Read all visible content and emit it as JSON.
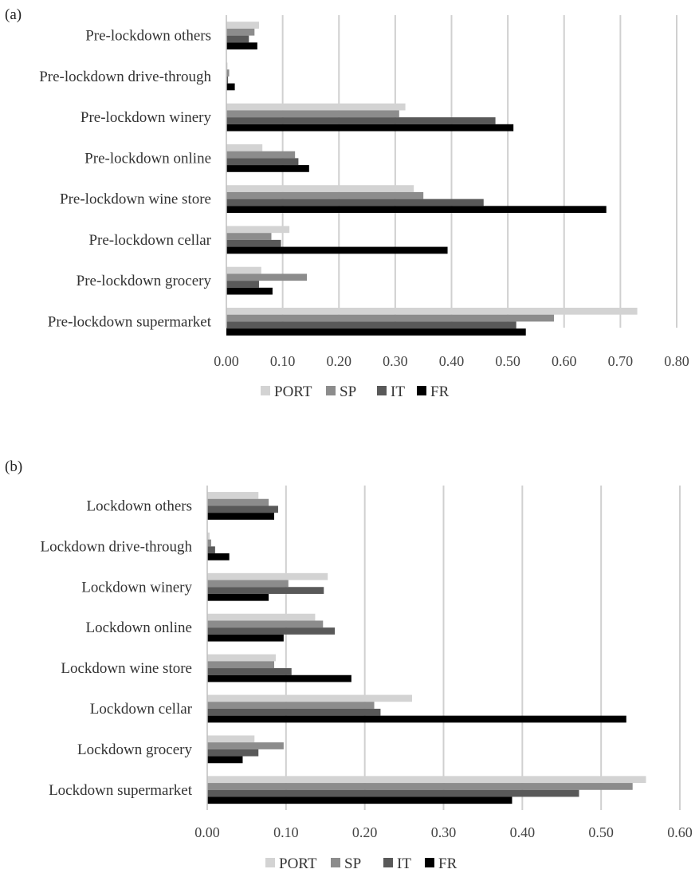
{
  "chart_data": [
    {
      "type": "bar",
      "orientation": "horizontal",
      "panel_label": "(a)",
      "categories": [
        "Pre-lockdown others",
        "Pre-lockdown drive-through",
        "Pre-lockdown winery",
        "Pre-lockdown online",
        "Pre-lockdown wine store",
        "Pre-lockdown cellar",
        "Pre-lockdown grocery",
        "Pre-lockdown supermarket"
      ],
      "series": [
        {
          "name": "PORT",
          "color": "#d3d3d3",
          "values": [
            0.058,
            0.002,
            0.318,
            0.064,
            0.333,
            0.112,
            0.062,
            0.73
          ]
        },
        {
          "name": "SP",
          "color": "#8c8c8c",
          "values": [
            0.05,
            0.005,
            0.307,
            0.122,
            0.35,
            0.08,
            0.143,
            0.582
          ]
        },
        {
          "name": "IT",
          "color": "#595959",
          "values": [
            0.04,
            0.003,
            0.478,
            0.128,
            0.457,
            0.097,
            0.058,
            0.515
          ]
        },
        {
          "name": "FR",
          "color": "#000000",
          "values": [
            0.055,
            0.015,
            0.51,
            0.147,
            0.675,
            0.393,
            0.082,
            0.532
          ]
        }
      ],
      "xlim": [
        0,
        0.8
      ],
      "xticks": [
        "0.00",
        "0.10",
        "0.20",
        "0.30",
        "0.40",
        "0.50",
        "0.60",
        "0.70",
        "0.80"
      ],
      "grid": "vertical",
      "legend_position": "bottom"
    },
    {
      "type": "bar",
      "orientation": "horizontal",
      "panel_label": "(b)",
      "categories": [
        "Lockdown others",
        "Lockdown drive-through",
        "Lockdown winery",
        "Lockdown online",
        "Lockdown wine store",
        "Lockdown cellar",
        "Lockdown grocery",
        "Lockdown supermarket"
      ],
      "series": [
        {
          "name": "PORT",
          "color": "#d3d3d3",
          "values": [
            0.065,
            0.003,
            0.153,
            0.137,
            0.087,
            0.26,
            0.06,
            0.557
          ]
        },
        {
          "name": "SP",
          "color": "#8c8c8c",
          "values": [
            0.078,
            0.005,
            0.103,
            0.147,
            0.085,
            0.212,
            0.097,
            0.54
          ]
        },
        {
          "name": "IT",
          "color": "#595959",
          "values": [
            0.09,
            0.01,
            0.148,
            0.162,
            0.107,
            0.22,
            0.065,
            0.472
          ]
        },
        {
          "name": "FR",
          "color": "#000000",
          "values": [
            0.085,
            0.028,
            0.078,
            0.097,
            0.183,
            0.532,
            0.045,
            0.387
          ]
        }
      ],
      "xlim": [
        0,
        0.6
      ],
      "xticks": [
        "0.00",
        "0.10",
        "0.20",
        "0.30",
        "0.40",
        "0.50",
        "0.60"
      ],
      "grid": "vertical",
      "legend_position": "bottom"
    }
  ]
}
